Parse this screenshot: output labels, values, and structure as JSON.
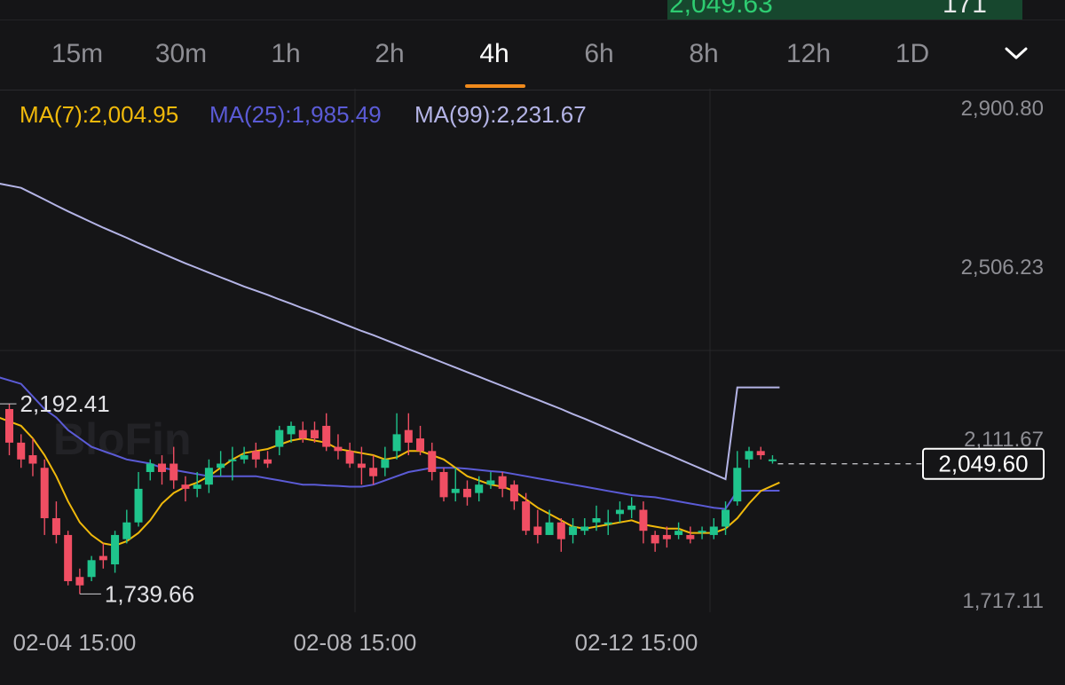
{
  "top": {
    "price": "2,049.63",
    "qty": "171"
  },
  "timeframes": [
    "15m",
    "30m",
    "1h",
    "2h",
    "4h",
    "6h",
    "8h",
    "12h",
    "1D"
  ],
  "active_timeframe": "4h",
  "colors": {
    "up": "#1fc48c",
    "down": "#f04e63",
    "ma7": "#f0b90b",
    "ma25": "#5b5bd6",
    "ma99": "#b4b4e6",
    "accent": "#f08a1c"
  },
  "chart_data": {
    "type": "candlestick",
    "legend": [
      {
        "label": "MA(7):2,004.95",
        "color": "#f0b90b"
      },
      {
        "label": "MA(25):1,985.49",
        "color": "#5b5bd6"
      },
      {
        "label": "MA(99):2,231.67",
        "color": "#b4b4e6"
      }
    ],
    "y_ticks": [
      {
        "value": 2900.8,
        "label": "2,900.80"
      },
      {
        "value": 2506.23,
        "label": "2,506.23"
      },
      {
        "value": 2111.67,
        "label": "2,111.67"
      },
      {
        "value": 1717.11,
        "label": "1,717.11"
      }
    ],
    "ylim": [
      1717.11,
      2900.8
    ],
    "x_ticks": [
      {
        "index": 0,
        "label": "02-04 15:00"
      },
      {
        "index": 24,
        "label": "02-08 15:00"
      },
      {
        "index": 48,
        "label": "02-12 15:00"
      }
    ],
    "current_price": "2,049.60",
    "current_value": 2049.6,
    "annotations": [
      {
        "label": "2,192.41",
        "value": 2192.41,
        "index": 0
      },
      {
        "label": "1,739.66",
        "value": 1739.66,
        "index": 6
      }
    ],
    "candles": [
      [
        2180,
        2100,
        2192.41,
        2070
      ],
      [
        2100,
        2060,
        2120,
        2040
      ],
      [
        2070,
        2050,
        2110,
        2020
      ],
      [
        2040,
        1920,
        2060,
        1880
      ],
      [
        1920,
        1880,
        1960,
        1860
      ],
      [
        1880,
        1770,
        1890,
        1760
      ],
      [
        1780,
        1760,
        1800,
        1739.66
      ],
      [
        1780,
        1820,
        1830,
        1770
      ],
      [
        1830,
        1820,
        1860,
        1800
      ],
      [
        1810,
        1880,
        1890,
        1790
      ],
      [
        1870,
        1910,
        1940,
        1860
      ],
      [
        1910,
        1990,
        2030,
        1900
      ],
      [
        2030,
        2050,
        2060,
        2010
      ],
      [
        2050,
        2030,
        2070,
        2000
      ],
      [
        2050,
        2010,
        2090,
        1990
      ],
      [
        2000,
        1990,
        2020,
        1960
      ],
      [
        1990,
        2000,
        2030,
        1970
      ],
      [
        2000,
        2040,
        2060,
        1980
      ],
      [
        2040,
        2050,
        2080,
        2020
      ],
      [
        2060,
        2060,
        2090,
        2010
      ],
      [
        2060,
        2070,
        2090,
        2050
      ],
      [
        2080,
        2060,
        2100,
        2040
      ],
      [
        2060,
        2050,
        2080,
        2040
      ],
      [
        2090,
        2130,
        2140,
        2070
      ],
      [
        2120,
        2140,
        2150,
        2100
      ],
      [
        2130,
        2110,
        2150,
        2100
      ],
      [
        2130,
        2110,
        2150,
        2100
      ],
      [
        2140,
        2090,
        2170,
        2080
      ],
      [
        2090,
        2080,
        2120,
        2060
      ],
      [
        2080,
        2050,
        2100,
        2040
      ],
      [
        2050,
        2040,
        2090,
        2000
      ],
      [
        2040,
        2020,
        2070,
        2000
      ],
      [
        2040,
        2060,
        2090,
        2020
      ],
      [
        2080,
        2120,
        2170,
        2060
      ],
      [
        2130,
        2100,
        2170,
        2070
      ],
      [
        2110,
        2080,
        2140,
        2070
      ],
      [
        2080,
        2030,
        2100,
        2010
      ],
      [
        2030,
        1970,
        2040,
        1960
      ],
      [
        1980,
        1990,
        2040,
        1960
      ],
      [
        1990,
        1970,
        2010,
        1950
      ],
      [
        1980,
        2000,
        2020,
        1960
      ],
      [
        2000,
        2010,
        2030,
        1990
      ],
      [
        2020,
        1990,
        2030,
        1970
      ],
      [
        2000,
        1960,
        2010,
        1940
      ],
      [
        1960,
        1890,
        1980,
        1880
      ],
      [
        1900,
        1880,
        1940,
        1860
      ],
      [
        1880,
        1910,
        1940,
        1880
      ],
      [
        1910,
        1870,
        1920,
        1840
      ],
      [
        1880,
        1900,
        1920,
        1860
      ],
      [
        1890,
        1900,
        1920,
        1880
      ],
      [
        1910,
        1920,
        1950,
        1890
      ],
      [
        1910,
        1910,
        1940,
        1880
      ],
      [
        1930,
        1940,
        1960,
        1910
      ],
      [
        1940,
        1950,
        1970,
        1920
      ],
      [
        1940,
        1890,
        1960,
        1860
      ],
      [
        1880,
        1860,
        1890,
        1840
      ],
      [
        1880,
        1870,
        1900,
        1850
      ],
      [
        1880,
        1890,
        1910,
        1870
      ],
      [
        1880,
        1870,
        1900,
        1860
      ],
      [
        1890,
        1890,
        1900,
        1870
      ],
      [
        1880,
        1900,
        1920,
        1870
      ],
      [
        1900,
        1940,
        1960,
        1880
      ],
      [
        1960,
        2040,
        2080,
        1950
      ],
      [
        2060,
        2080,
        2090,
        2040
      ],
      [
        2080,
        2070,
        2090,
        2060
      ],
      [
        2060,
        2060,
        2070,
        2050
      ]
    ],
    "ma7": [
      2165,
      2140,
      2110,
      2070,
      2020,
      1960,
      1910,
      1880,
      1860,
      1855,
      1865,
      1885,
      1915,
      1955,
      1980,
      1995,
      2005,
      2020,
      2040,
      2060,
      2075,
      2080,
      2085,
      2095,
      2105,
      2110,
      2105,
      2100,
      2085,
      2080,
      2075,
      2070,
      2060,
      2065,
      2080,
      2080,
      2070,
      2060,
      2040,
      2020,
      2010,
      2000,
      1995,
      1985,
      1965,
      1945,
      1930,
      1915,
      1900,
      1895,
      1900,
      1905,
      1910,
      1915,
      1905,
      1900,
      1895,
      1895,
      1885,
      1885,
      1885,
      1895,
      1920,
      1955,
      1985,
      2004.95
    ],
    "ma25": [
      2260,
      2240,
      2210,
      2180,
      2160,
      2130,
      2110,
      2090,
      2080,
      2070,
      2060,
      2055,
      2050,
      2040,
      2035,
      2030,
      2025,
      2020,
      2020,
      2020,
      2020,
      2020,
      2015,
      2010,
      2005,
      2000,
      2000,
      1998,
      1997,
      1995,
      1995,
      2000,
      2010,
      2020,
      2030,
      2035,
      2040,
      2040,
      2040,
      2038,
      2035,
      2032,
      2030,
      2025,
      2020,
      2015,
      2010,
      2005,
      2000,
      1995,
      1990,
      1985,
      1980,
      1975,
      1972,
      1970,
      1965,
      1960,
      1955,
      1950,
      1945,
      1942,
      1985,
      1985.49,
      1985.49,
      1985.49
    ],
    "ma99": [
      2720,
      2707,
      2693,
      2679,
      2665,
      2651,
      2638,
      2625,
      2612,
      2600,
      2588,
      2575,
      2563,
      2551,
      2539,
      2527,
      2516,
      2505,
      2494,
      2483,
      2472,
      2462,
      2452,
      2441,
      2431,
      2420,
      2410,
      2399,
      2388,
      2377,
      2366,
      2356,
      2345,
      2334,
      2323,
      2312,
      2301,
      2290,
      2279,
      2268,
      2257,
      2246,
      2235,
      2224,
      2213,
      2202,
      2191,
      2180,
      2168,
      2157,
      2145,
      2133,
      2121,
      2109,
      2097,
      2085,
      2073,
      2061,
      2049,
      2037,
      2025,
      2013,
      2231.67,
      2231.67,
      2231.67,
      2231.67
    ]
  }
}
